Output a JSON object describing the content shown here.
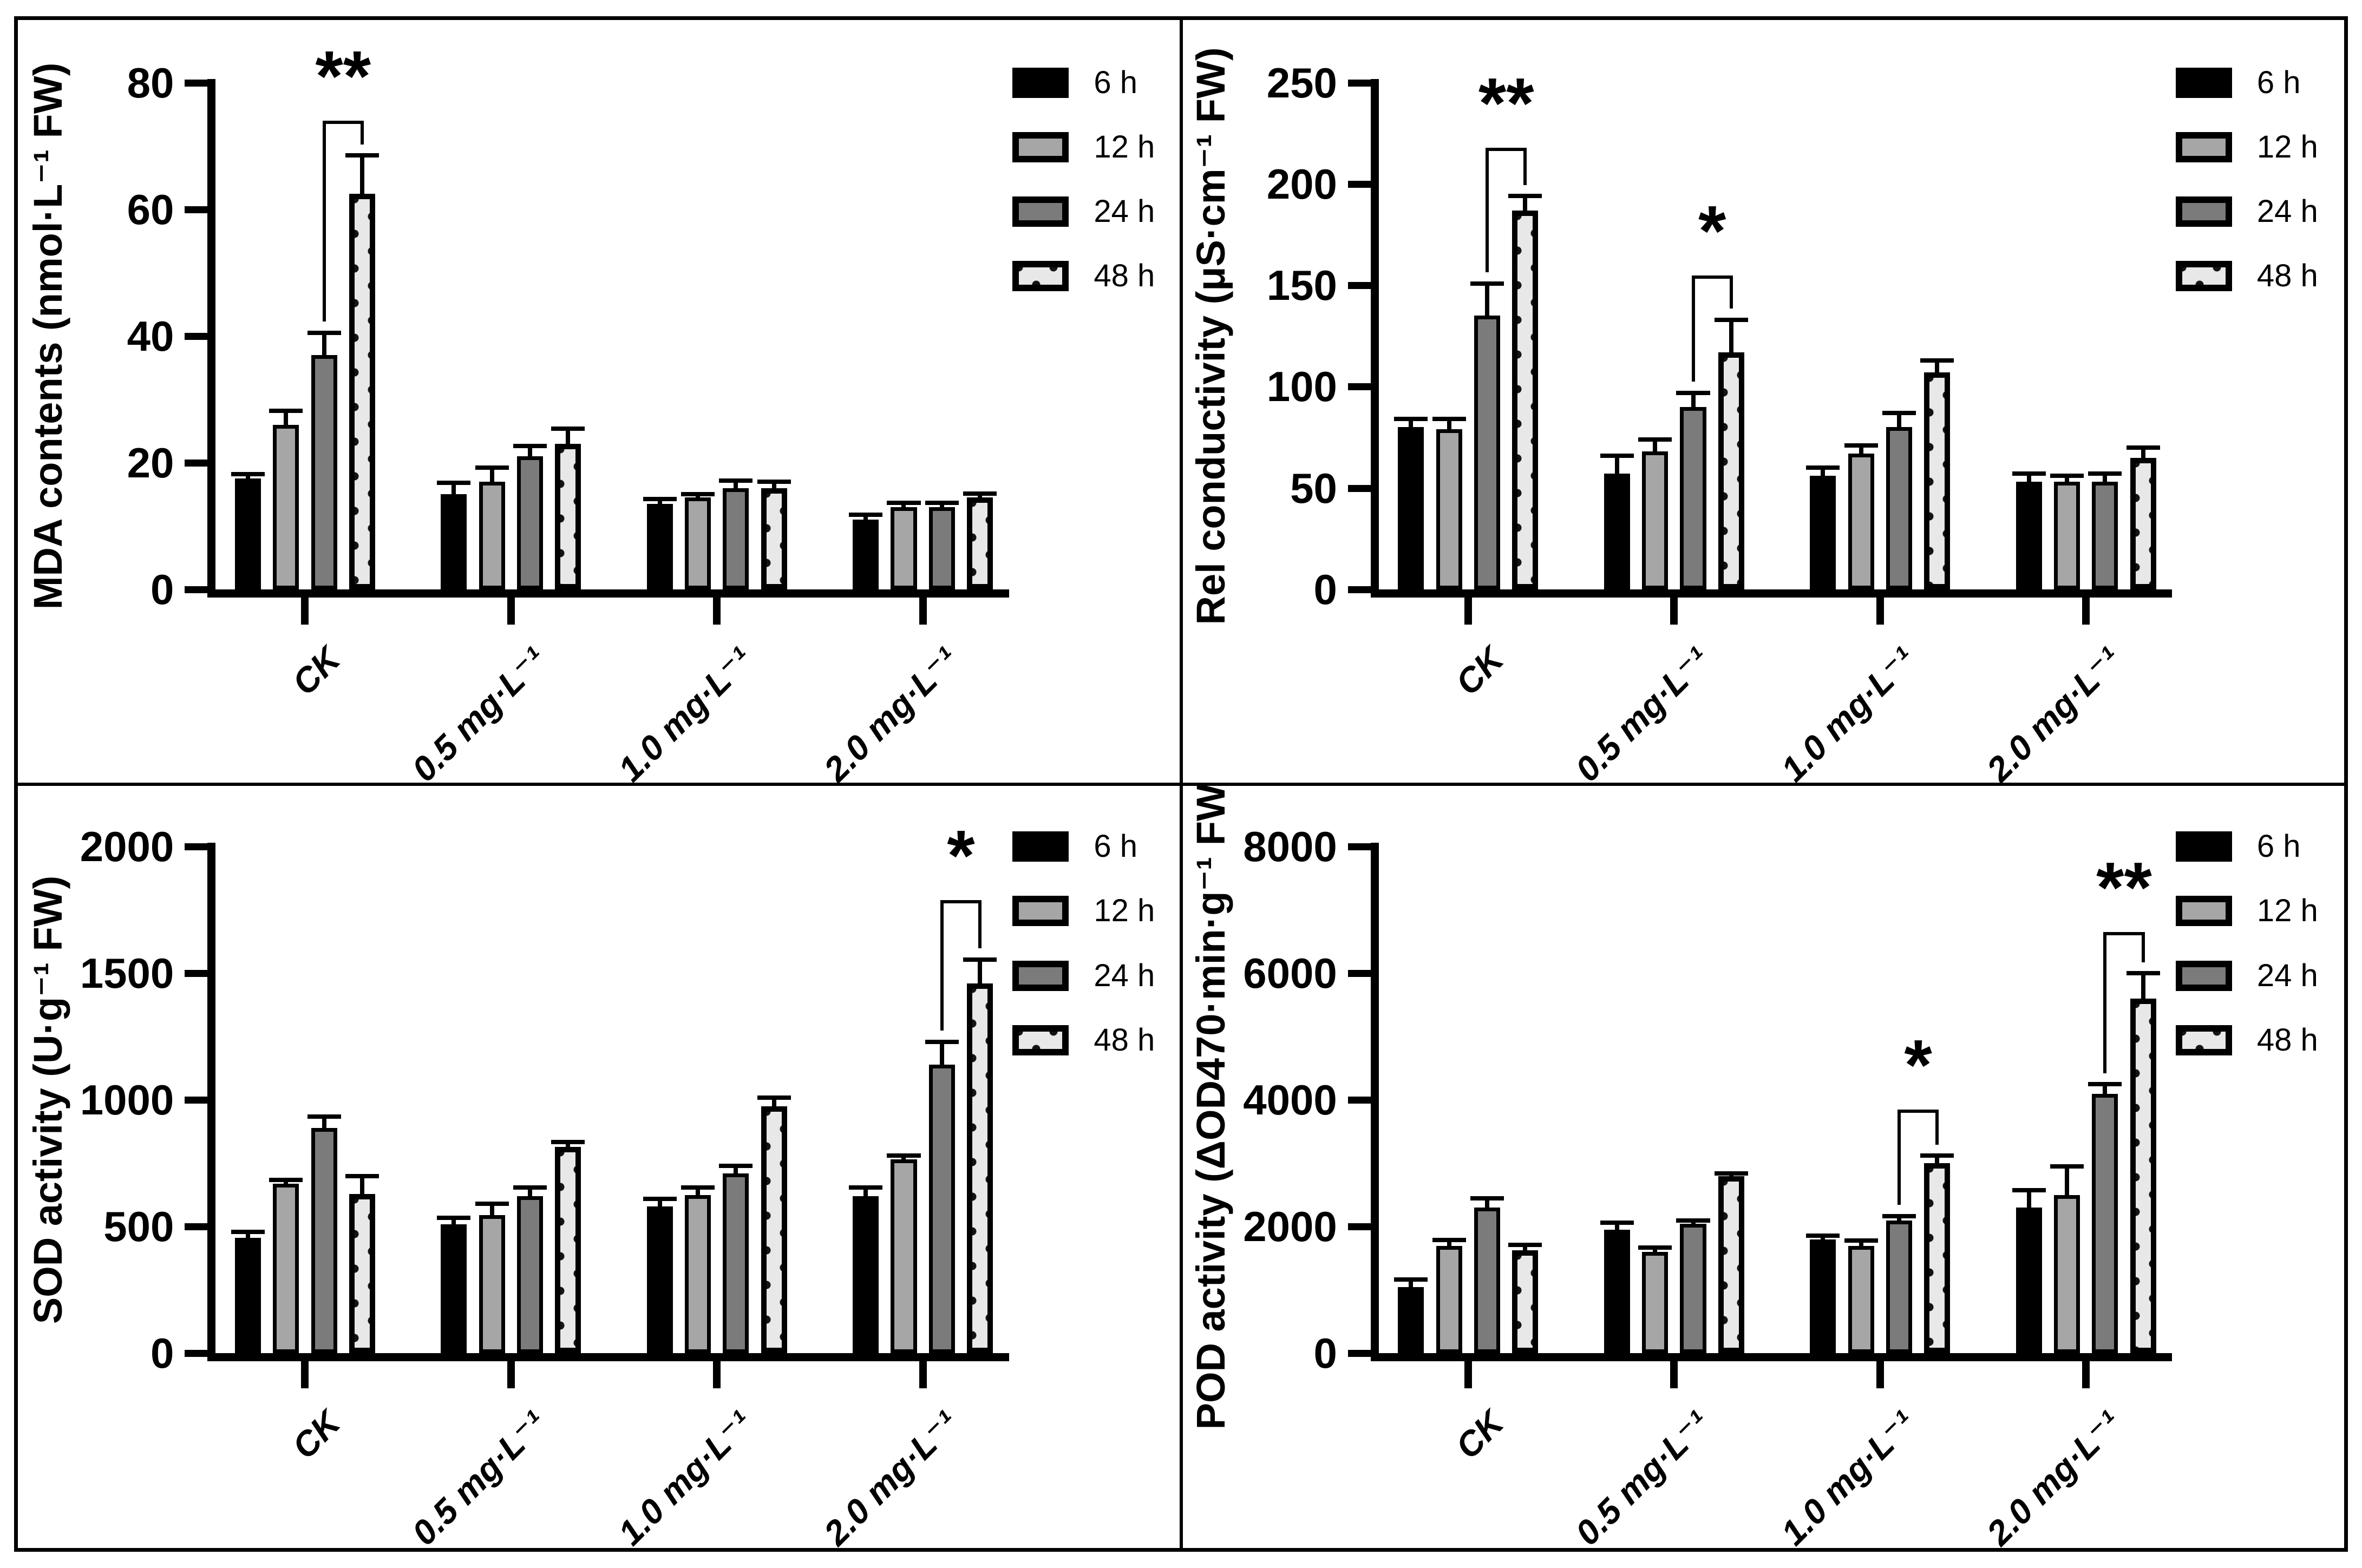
{
  "figure": {
    "description": "Four-panel grouped bar chart figure of physiological/biochemical responses",
    "colors": {
      "axis": "#000000",
      "bar_6h": "#000000",
      "bar_12h": "#A6A6A6",
      "bar_24h": "#7B7B7B",
      "bar_48h_fill": "#E8E8E8",
      "bar_48h_dots": "#141414",
      "background": "#FFFFFF"
    },
    "legend": {
      "position": "right",
      "items": [
        {
          "key": "h6",
          "label": "6 h",
          "pattern": "solid-black"
        },
        {
          "key": "h12",
          "label": "12 h",
          "pattern": "light-gray"
        },
        {
          "key": "h24",
          "label": "24 h",
          "pattern": "dark-gray"
        },
        {
          "key": "h48",
          "label": "48 h",
          "pattern": "dotted"
        }
      ]
    }
  },
  "chart_data": [
    {
      "type": "bar",
      "panel": "top-left",
      "title": "",
      "ylabel": "MDA contents (nmol·L⁻¹ FW)",
      "xlabel": "",
      "ylim": [
        0,
        80
      ],
      "yticks": [
        0,
        20,
        40,
        60,
        80
      ],
      "grid": false,
      "categories": [
        "CK",
        "0.5 mg·L⁻¹",
        "1.0 mg·L⁻¹",
        "2.0 mg·L⁻¹"
      ],
      "series": [
        {
          "name": "6 h",
          "values": [
            17.5,
            15,
            13.5,
            11
          ],
          "errors": [
            0.7,
            1.8,
            0.8,
            0.8
          ]
        },
        {
          "name": "12 h",
          "values": [
            26,
            17,
            14.5,
            13
          ],
          "errors": [
            2.2,
            2.2,
            0.5,
            0.7
          ]
        },
        {
          "name": "24 h",
          "values": [
            37,
            21,
            16,
            13
          ],
          "errors": [
            3.5,
            1.6,
            1.2,
            0.7
          ]
        },
        {
          "name": "48 h",
          "values": [
            62.5,
            23,
            16,
            14.5
          ],
          "errors": [
            6,
            2.4,
            1.0,
            0.6
          ]
        }
      ],
      "significance": [
        {
          "category_index": 0,
          "pair": [
            2,
            3
          ],
          "label": "**",
          "bracket_top": 74
        }
      ]
    },
    {
      "type": "bar",
      "panel": "top-right",
      "title": "",
      "ylabel": "Rel conductivity (μS·cm⁻¹ FW)",
      "xlabel": "",
      "ylim": [
        0,
        250
      ],
      "yticks": [
        0,
        50,
        100,
        150,
        200,
        250
      ],
      "grid": false,
      "categories": [
        "CK",
        "0.5 mg·L⁻¹",
        "1.0 mg·L⁻¹",
        "2.0 mg·L⁻¹"
      ],
      "series": [
        {
          "name": "6 h",
          "values": [
            80,
            57,
            56,
            53
          ],
          "errors": [
            4,
            9,
            4,
            4
          ]
        },
        {
          "name": "12 h",
          "values": [
            79,
            68,
            67,
            53
          ],
          "errors": [
            5,
            6,
            4,
            3
          ]
        },
        {
          "name": "24 h",
          "values": [
            135,
            90,
            80,
            53
          ],
          "errors": [
            16,
            7,
            7,
            4
          ]
        },
        {
          "name": "48 h",
          "values": [
            187,
            117,
            107,
            65
          ],
          "errors": [
            7,
            16,
            6,
            5
          ]
        }
      ],
      "significance": [
        {
          "category_index": 0,
          "pair": [
            2,
            3
          ],
          "label": "**",
          "bracket_top": 218
        },
        {
          "category_index": 1,
          "pair": [
            2,
            3
          ],
          "label": "*",
          "bracket_top": 155
        }
      ]
    },
    {
      "type": "bar",
      "panel": "bottom-left",
      "title": "",
      "ylabel": "SOD activity (U·g⁻¹ FW)",
      "xlabel": "",
      "ylim": [
        0,
        2000
      ],
      "yticks": [
        0,
        500,
        1000,
        1500,
        2000
      ],
      "grid": false,
      "categories": [
        "CK",
        "0.5 mg·L⁻¹",
        "1.0 mg·L⁻¹",
        "2.0 mg·L⁻¹"
      ],
      "series": [
        {
          "name": "6 h",
          "values": [
            455,
            510,
            580,
            620
          ],
          "errors": [
            25,
            25,
            30,
            35
          ]
        },
        {
          "name": "12 h",
          "values": [
            670,
            545,
            625,
            765
          ],
          "errors": [
            15,
            45,
            30,
            15
          ]
        },
        {
          "name": "24 h",
          "values": [
            890,
            620,
            710,
            1140
          ],
          "errors": [
            45,
            35,
            30,
            90
          ]
        },
        {
          "name": "48 h",
          "values": [
            630,
            815,
            975,
            1460
          ],
          "errors": [
            70,
            20,
            35,
            95
          ]
        }
      ],
      "significance": [
        {
          "category_index": 3,
          "pair": [
            2,
            3
          ],
          "label": "*",
          "bracket_top": 1790
        }
      ]
    },
    {
      "type": "bar",
      "panel": "bottom-right",
      "title": "",
      "ylabel": "POD activity (ΔOD470·min·g⁻¹ FW)",
      "xlabel": "",
      "ylim": [
        0,
        8000
      ],
      "yticks": [
        0,
        2000,
        4000,
        6000,
        8000
      ],
      "grid": false,
      "categories": [
        "CK",
        "0.5 mg·L⁻¹",
        "1.0 mg·L⁻¹",
        "2.0 mg·L⁻¹"
      ],
      "series": [
        {
          "name": "6 h",
          "values": [
            1050,
            1950,
            1800,
            2300
          ],
          "errors": [
            120,
            110,
            60,
            280
          ]
        },
        {
          "name": "12 h",
          "values": [
            1700,
            1600,
            1700,
            2500
          ],
          "errors": [
            90,
            70,
            80,
            450
          ]
        },
        {
          "name": "24 h",
          "values": [
            2300,
            2050,
            2100,
            4100
          ],
          "errors": [
            150,
            50,
            70,
            150
          ]
        },
        {
          "name": "48 h",
          "values": [
            1630,
            2800,
            3000,
            5600
          ],
          "errors": [
            80,
            40,
            120,
            400
          ]
        }
      ],
      "significance": [
        {
          "category_index": 2,
          "pair": [
            2,
            3
          ],
          "label": "*",
          "bracket_top": 3850
        },
        {
          "category_index": 3,
          "pair": [
            2,
            3
          ],
          "label": "**",
          "bracket_top": 6650
        }
      ]
    }
  ]
}
